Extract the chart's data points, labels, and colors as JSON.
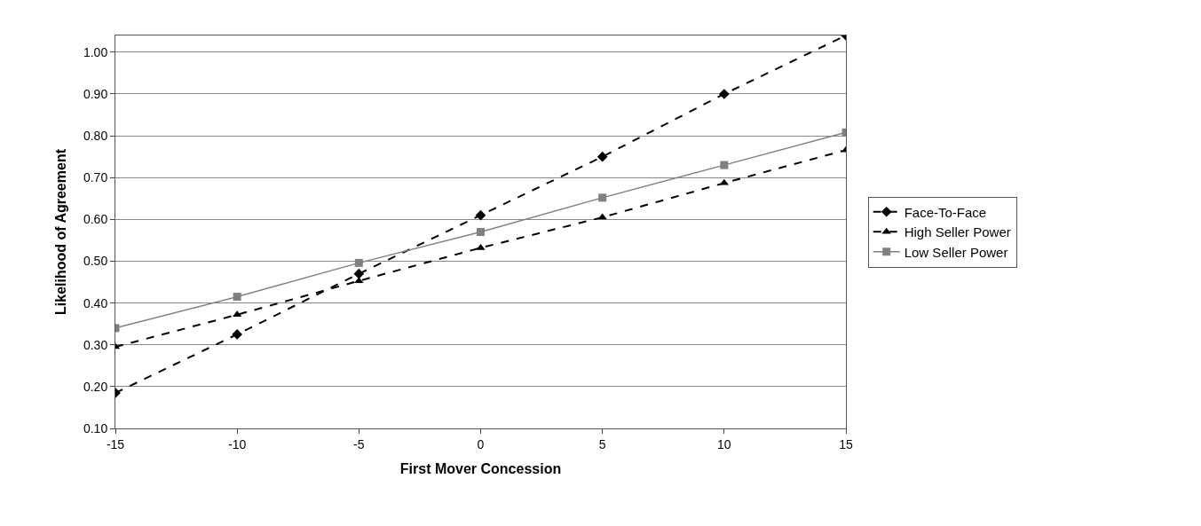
{
  "chart_data": {
    "type": "line",
    "xlabel": "First Mover Concession",
    "ylabel": "Likelihood of Agreement",
    "x": [
      -15,
      -10,
      -5,
      0,
      5,
      10,
      15
    ],
    "series": [
      {
        "name": "Face-To-Face",
        "color": "#000000",
        "marker": "diamond",
        "line_style": "dashed",
        "values": [
          0.185,
          0.325,
          0.47,
          0.61,
          0.75,
          0.9,
          1.04
        ]
      },
      {
        "name": "High Seller Power",
        "color": "#000000",
        "marker": "triangle",
        "line_style": "dashed",
        "values": [
          0.295,
          0.372,
          0.453,
          0.532,
          0.605,
          0.687,
          0.766
        ]
      },
      {
        "name": "Low Seller Power",
        "color": "#808080",
        "marker": "square",
        "line_style": "solid",
        "values": [
          0.34,
          0.415,
          0.496,
          0.57,
          0.652,
          0.73,
          0.808
        ]
      }
    ],
    "xlim": [
      -15,
      15
    ],
    "xticks": [
      -15,
      -10,
      -5,
      0,
      5,
      10,
      15
    ],
    "ylim": [
      0.1,
      1.04
    ],
    "yticks": [
      {
        "value": 0.1,
        "label": "0.10"
      },
      {
        "value": 0.2,
        "label": "0.20"
      },
      {
        "value": 0.3,
        "label": "0.30"
      },
      {
        "value": 0.4,
        "label": "0.40"
      },
      {
        "value": 0.5,
        "label": "0.50"
      },
      {
        "value": 0.6,
        "label": "0.60"
      },
      {
        "value": 0.7,
        "label": "0.70"
      },
      {
        "value": 0.8,
        "label": "0.80"
      },
      {
        "value": 0.9,
        "label": "0.90"
      },
      {
        "value": 1.0,
        "label": "1.00"
      }
    ],
    "grid": "y",
    "legend": "right"
  }
}
